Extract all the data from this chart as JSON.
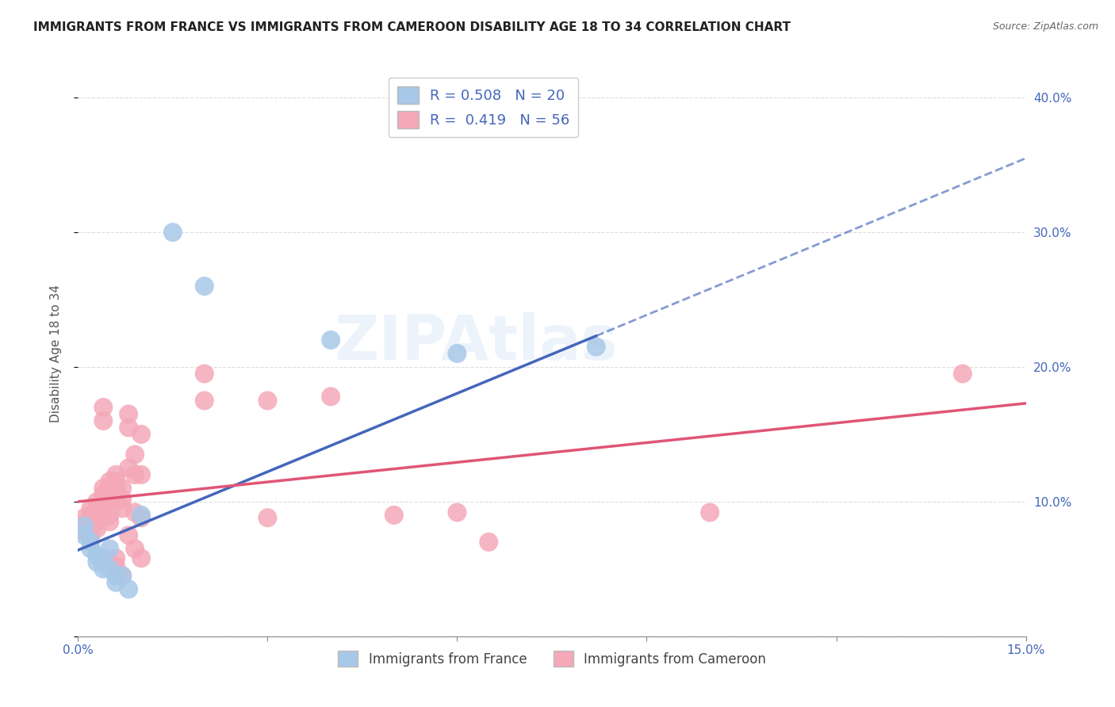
{
  "title": "IMMIGRANTS FROM FRANCE VS IMMIGRANTS FROM CAMEROON DISABILITY AGE 18 TO 34 CORRELATION CHART",
  "source": "Source: ZipAtlas.com",
  "ylabel": "Disability Age 18 to 34",
  "xlim": [
    0.0,
    0.15
  ],
  "ylim": [
    0.0,
    0.42
  ],
  "x_ticks": [
    0.0,
    0.03,
    0.06,
    0.09,
    0.12,
    0.15
  ],
  "x_tick_labels": [
    "0.0%",
    "",
    "",
    "",
    "",
    "15.0%"
  ],
  "y_tick_labels_right": [
    "",
    "10.0%",
    "20.0%",
    "30.0%",
    "40.0%"
  ],
  "y_ticks_right": [
    0.0,
    0.1,
    0.2,
    0.3,
    0.4
  ],
  "watermark": "ZIPAtlas",
  "france_color": "#a8c8e8",
  "cameroon_color": "#f4a8b8",
  "france_line_color": "#4466bb",
  "cameroon_line_color": "#e05575",
  "france_R": 0.508,
  "france_N": 20,
  "cameroon_R": 0.419,
  "cameroon_N": 56,
  "france_line_solid_end": 0.082,
  "france_line_x0": 0.0,
  "france_line_y0": 0.064,
  "france_line_x1": 0.15,
  "france_line_y1": 0.355,
  "cameroon_line_x0": 0.0,
  "cameroon_line_y0": 0.1,
  "cameroon_line_x1": 0.15,
  "cameroon_line_y1": 0.173,
  "france_points": [
    [
      0.001,
      0.082
    ],
    [
      0.001,
      0.075
    ],
    [
      0.002,
      0.07
    ],
    [
      0.002,
      0.065
    ],
    [
      0.003,
      0.06
    ],
    [
      0.003,
      0.055
    ],
    [
      0.004,
      0.058
    ],
    [
      0.004,
      0.05
    ],
    [
      0.005,
      0.065
    ],
    [
      0.005,
      0.05
    ],
    [
      0.006,
      0.045
    ],
    [
      0.006,
      0.04
    ],
    [
      0.007,
      0.045
    ],
    [
      0.008,
      0.035
    ],
    [
      0.01,
      0.09
    ],
    [
      0.015,
      0.3
    ],
    [
      0.02,
      0.26
    ],
    [
      0.04,
      0.22
    ],
    [
      0.06,
      0.21
    ],
    [
      0.082,
      0.215
    ]
  ],
  "cameroon_points": [
    [
      0.001,
      0.088
    ],
    [
      0.001,
      0.083
    ],
    [
      0.001,
      0.078
    ],
    [
      0.002,
      0.095
    ],
    [
      0.002,
      0.09
    ],
    [
      0.002,
      0.085
    ],
    [
      0.002,
      0.08
    ],
    [
      0.002,
      0.075
    ],
    [
      0.003,
      0.1
    ],
    [
      0.003,
      0.095
    ],
    [
      0.003,
      0.09
    ],
    [
      0.003,
      0.085
    ],
    [
      0.003,
      0.08
    ],
    [
      0.004,
      0.17
    ],
    [
      0.004,
      0.16
    ],
    [
      0.004,
      0.11
    ],
    [
      0.004,
      0.105
    ],
    [
      0.004,
      0.095
    ],
    [
      0.004,
      0.088
    ],
    [
      0.005,
      0.115
    ],
    [
      0.005,
      0.11
    ],
    [
      0.005,
      0.1
    ],
    [
      0.005,
      0.09
    ],
    [
      0.005,
      0.085
    ],
    [
      0.006,
      0.12
    ],
    [
      0.006,
      0.115
    ],
    [
      0.006,
      0.108
    ],
    [
      0.006,
      0.1
    ],
    [
      0.006,
      0.058
    ],
    [
      0.006,
      0.052
    ],
    [
      0.007,
      0.11
    ],
    [
      0.007,
      0.102
    ],
    [
      0.007,
      0.095
    ],
    [
      0.007,
      0.045
    ],
    [
      0.008,
      0.165
    ],
    [
      0.008,
      0.155
    ],
    [
      0.008,
      0.125
    ],
    [
      0.008,
      0.075
    ],
    [
      0.009,
      0.135
    ],
    [
      0.009,
      0.12
    ],
    [
      0.009,
      0.092
    ],
    [
      0.009,
      0.065
    ],
    [
      0.01,
      0.15
    ],
    [
      0.01,
      0.12
    ],
    [
      0.01,
      0.088
    ],
    [
      0.01,
      0.058
    ],
    [
      0.02,
      0.195
    ],
    [
      0.02,
      0.175
    ],
    [
      0.03,
      0.175
    ],
    [
      0.03,
      0.088
    ],
    [
      0.04,
      0.178
    ],
    [
      0.05,
      0.09
    ],
    [
      0.06,
      0.092
    ],
    [
      0.065,
      0.07
    ],
    [
      0.1,
      0.092
    ],
    [
      0.14,
      0.195
    ]
  ],
  "grid_color": "#dddddd",
  "background_color": "#ffffff",
  "title_fontsize": 11,
  "axis_label_fontsize": 11,
  "tick_fontsize": 11
}
